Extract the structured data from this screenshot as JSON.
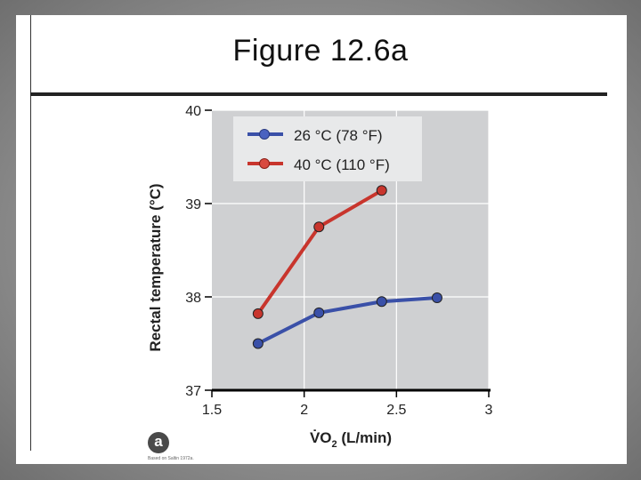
{
  "slide": {
    "title": "Figure 12.6a",
    "badge": "a",
    "credit": "Based on Saltin 1972a."
  },
  "chart_data": {
    "type": "line",
    "title": "",
    "xlabel_main": "V̇O",
    "xlabel_sub": "2",
    "xlabel_rest": " (L/min)",
    "ylabel": "Rectal temperature (°C)",
    "xlim": [
      1.5,
      3
    ],
    "ylim": [
      37,
      40
    ],
    "xticks": [
      "1.5",
      "2",
      "2.5",
      "3"
    ],
    "yticks": [
      "37",
      "38",
      "39",
      "40"
    ],
    "grid": true,
    "legend_position": "top-left",
    "series": [
      {
        "name": "26 °C (78 °F)",
        "color": "#3a50a8",
        "x": [
          1.75,
          2.08,
          2.42,
          2.72
        ],
        "y": [
          37.5,
          37.83,
          37.95,
          37.99
        ]
      },
      {
        "name": "40 °C (110 °F)",
        "color": "#c8352d",
        "x": [
          1.75,
          2.08,
          2.42
        ],
        "y": [
          37.82,
          38.75,
          39.14
        ]
      }
    ]
  }
}
